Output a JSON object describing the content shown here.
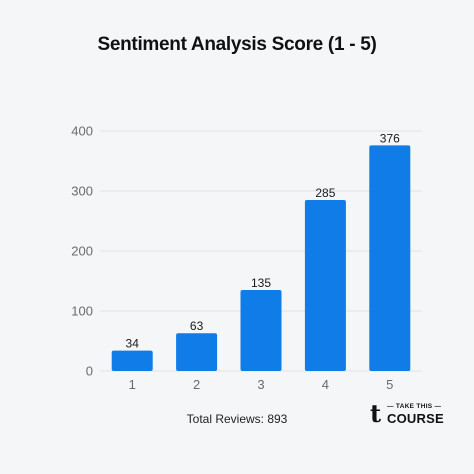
{
  "chart_data": {
    "type": "bar",
    "title": "Sentiment Analysis Score (1 - 5)",
    "categories": [
      "1",
      "2",
      "3",
      "4",
      "5"
    ],
    "values": [
      34,
      63,
      135,
      285,
      376
    ],
    "ylim": [
      0,
      400
    ],
    "yticks": [
      0,
      100,
      200,
      300,
      400
    ],
    "grid": true,
    "bar_color": "#0f7ce8",
    "grid_color": "#e1e3e6"
  },
  "footer": {
    "text": "Total Reviews: 893"
  },
  "logo": {
    "glyph": "t",
    "top_text": "— TAKE THIS —",
    "bottom_text": "COURSE"
  }
}
